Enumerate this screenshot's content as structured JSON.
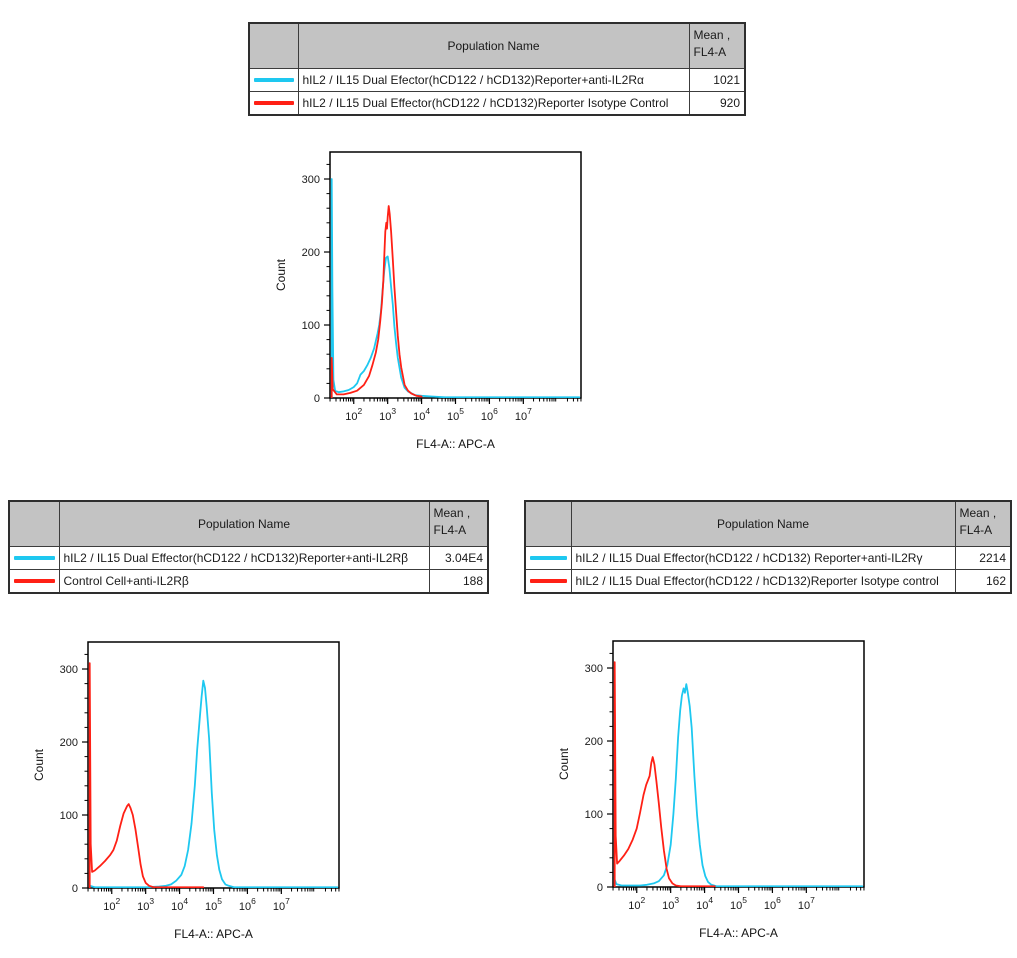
{
  "colors": {
    "cyan": "#1EC8F0",
    "red": "#FF2015",
    "table_header_bg": "#C3C3C3",
    "axis": "#000000"
  },
  "tables": [
    {
      "header": {
        "population": "Population Name",
        "mean_line1": "Mean ,",
        "mean_line2": "FL4-A"
      },
      "rows": [
        {
          "color": "#1EC8F0",
          "name": "hIL2 / IL15 Dual Efector(hCD122 / hCD132)Reporter+anti-IL2Rα",
          "mean": "1021"
        },
        {
          "color": "#FF2015",
          "name": "hIL2 / IL15 Dual Effector(hCD122 / hCD132)Reporter Isotype Control",
          "mean": "920"
        }
      ]
    },
    {
      "header": {
        "population": "Population Name",
        "mean_line1": "Mean ,",
        "mean_line2": "FL4-A"
      },
      "rows": [
        {
          "color": "#1EC8F0",
          "name": "hIL2 / IL15 Dual Effector(hCD122 / hCD132)Reporter+anti-IL2Rβ",
          "mean": "3.04E4"
        },
        {
          "color": "#FF2015",
          "name": "Control Cell+anti-IL2Rβ",
          "mean": "188"
        }
      ]
    },
    {
      "header": {
        "population": "Population Name",
        "mean_line1": "Mean ,",
        "mean_line2": "FL4-A"
      },
      "rows": [
        {
          "color": "#1EC8F0",
          "name": "hIL2 / IL15 Dual Effector(hCD122 / hCD132) Reporter+anti-IL2Rγ",
          "mean": "2214"
        },
        {
          "color": "#FF2015",
          "name": "hIL2 / IL15 Dual Effector(hCD122 / hCD132)Reporter Isotype control",
          "mean": "162"
        }
      ]
    }
  ],
  "chart_data": [
    {
      "type": "line",
      "title": "",
      "xlabel": "FL4-A:: APC-A",
      "ylabel": "Count",
      "x_scale": "log10",
      "x_range": [
        1.3,
        8.7
      ],
      "x_major_ticks": [
        2,
        3,
        4,
        5,
        6,
        7
      ],
      "ylim": [
        0,
        337
      ],
      "y_major_ticks": [
        0,
        100,
        200,
        300
      ],
      "y_minor_step": 20,
      "grid": false,
      "legend_position": "none",
      "series": [
        {
          "name": "hIL2 / IL15 Dual Efector(hCD122 / hCD132)Reporter+anti-IL2Rα",
          "color": "#1EC8F0",
          "peak": {
            "x_log10": 2.97,
            "count": 195
          },
          "points": [
            [
              1.35,
              0
            ],
            [
              1.35,
              300
            ],
            [
              1.37,
              150
            ],
            [
              1.4,
              25
            ],
            [
              1.45,
              10
            ],
            [
              1.55,
              8
            ],
            [
              1.7,
              9
            ],
            [
              1.85,
              11
            ],
            [
              2.0,
              15
            ],
            [
              2.1,
              20
            ],
            [
              2.2,
              32
            ],
            [
              2.3,
              37
            ],
            [
              2.4,
              45
            ],
            [
              2.5,
              55
            ],
            [
              2.6,
              68
            ],
            [
              2.7,
              88
            ],
            [
              2.75,
              100
            ],
            [
              2.8,
              118
            ],
            [
              2.85,
              148
            ],
            [
              2.9,
              175
            ],
            [
              2.95,
              192
            ],
            [
              3.0,
              194
            ],
            [
              3.05,
              178
            ],
            [
              3.1,
              152
            ],
            [
              3.15,
              128
            ],
            [
              3.2,
              98
            ],
            [
              3.25,
              75
            ],
            [
              3.3,
              55
            ],
            [
              3.4,
              28
            ],
            [
              3.5,
              14
            ],
            [
              3.6,
              9
            ],
            [
              3.8,
              4
            ],
            [
              4.0,
              3
            ],
            [
              4.3,
              2
            ],
            [
              4.7,
              1
            ],
            [
              5.5,
              1
            ],
            [
              6.5,
              1
            ],
            [
              7.5,
              1
            ],
            [
              8.65,
              1
            ]
          ]
        },
        {
          "name": "hIL2 / IL15 Dual Effector(hCD122 / hCD132)Reporter Isotype Control",
          "color": "#FF2015",
          "peak": {
            "x_log10": 3.03,
            "count": 263
          },
          "points": [
            [
              1.35,
              0
            ],
            [
              1.35,
              55
            ],
            [
              1.38,
              12
            ],
            [
              1.5,
              5
            ],
            [
              1.7,
              5
            ],
            [
              1.9,
              7
            ],
            [
              2.1,
              10
            ],
            [
              2.3,
              18
            ],
            [
              2.45,
              30
            ],
            [
              2.55,
              45
            ],
            [
              2.65,
              62
            ],
            [
              2.72,
              80
            ],
            [
              2.78,
              105
            ],
            [
              2.83,
              130
            ],
            [
              2.87,
              160
            ],
            [
              2.9,
              195
            ],
            [
              2.93,
              228
            ],
            [
              2.96,
              240
            ],
            [
              2.98,
              232
            ],
            [
              3.0,
              248
            ],
            [
              3.03,
              263
            ],
            [
              3.06,
              252
            ],
            [
              3.1,
              228
            ],
            [
              3.15,
              190
            ],
            [
              3.2,
              152
            ],
            [
              3.25,
              118
            ],
            [
              3.3,
              85
            ],
            [
              3.35,
              60
            ],
            [
              3.4,
              42
            ],
            [
              3.5,
              18
            ],
            [
              3.6,
              10
            ],
            [
              3.7,
              6
            ],
            [
              3.85,
              3
            ],
            [
              4.0,
              2
            ]
          ]
        }
      ]
    },
    {
      "type": "line",
      "title": "",
      "xlabel": "FL4-A:: APC-A",
      "ylabel": "Count",
      "x_scale": "log10",
      "x_range": [
        1.3,
        8.7
      ],
      "x_major_ticks": [
        2,
        3,
        4,
        5,
        6,
        7
      ],
      "ylim": [
        0,
        337
      ],
      "y_major_ticks": [
        0,
        100,
        200,
        300
      ],
      "y_minor_step": 20,
      "grid": false,
      "legend_position": "none",
      "series": [
        {
          "name": "hIL2 / IL15 Dual Effector(hCD122 / hCD132)Reporter+anti-IL2Rβ",
          "color": "#1EC8F0",
          "peak": {
            "x_log10": 4.7,
            "count": 284
          },
          "points": [
            [
              1.35,
              3
            ],
            [
              1.5,
              1
            ],
            [
              2.0,
              1
            ],
            [
              2.5,
              1
            ],
            [
              3.0,
              1
            ],
            [
              3.4,
              2
            ],
            [
              3.6,
              3
            ],
            [
              3.75,
              5
            ],
            [
              3.9,
              10
            ],
            [
              4.05,
              18
            ],
            [
              4.15,
              30
            ],
            [
              4.25,
              52
            ],
            [
              4.35,
              88
            ],
            [
              4.45,
              140
            ],
            [
              4.52,
              190
            ],
            [
              4.6,
              235
            ],
            [
              4.65,
              262
            ],
            [
              4.7,
              284
            ],
            [
              4.75,
              274
            ],
            [
              4.8,
              248
            ],
            [
              4.87,
              205
            ],
            [
              4.95,
              130
            ],
            [
              5.02,
              80
            ],
            [
              5.1,
              45
            ],
            [
              5.17,
              25
            ],
            [
              5.25,
              12
            ],
            [
              5.35,
              5
            ],
            [
              5.45,
              3
            ],
            [
              5.6,
              1
            ],
            [
              6.2,
              1
            ],
            [
              7.2,
              1
            ],
            [
              8.65,
              1
            ]
          ]
        },
        {
          "name": "Control Cell+anti-IL2Rβ",
          "color": "#FF2015",
          "peak": {
            "x_log10": 2.5,
            "count": 115
          },
          "points": [
            [
              1.35,
              0
            ],
            [
              1.35,
              308
            ],
            [
              1.38,
              60
            ],
            [
              1.42,
              22
            ],
            [
              1.5,
              24
            ],
            [
              1.65,
              30
            ],
            [
              1.8,
              37
            ],
            [
              1.95,
              45
            ],
            [
              2.05,
              52
            ],
            [
              2.15,
              65
            ],
            [
              2.25,
              85
            ],
            [
              2.35,
              102
            ],
            [
              2.45,
              112
            ],
            [
              2.5,
              115
            ],
            [
              2.55,
              110
            ],
            [
              2.62,
              100
            ],
            [
              2.7,
              80
            ],
            [
              2.78,
              55
            ],
            [
              2.85,
              32
            ],
            [
              2.92,
              16
            ],
            [
              3.0,
              7
            ],
            [
              3.1,
              3
            ],
            [
              3.25,
              1
            ],
            [
              4.7,
              1
            ]
          ]
        }
      ]
    },
    {
      "type": "line",
      "title": "",
      "xlabel": "FL4-A:: APC-A",
      "ylabel": "Count",
      "x_scale": "log10",
      "x_range": [
        1.3,
        8.7
      ],
      "x_major_ticks": [
        2,
        3,
        4,
        5,
        6,
        7
      ],
      "ylim": [
        0,
        337
      ],
      "y_major_ticks": [
        0,
        100,
        200,
        300
      ],
      "y_minor_step": 20,
      "grid": false,
      "legend_position": "none",
      "series": [
        {
          "name": "hIL2 / IL15 Dual Effector(hCD122 / hCD132) Reporter+anti-IL2Rγ",
          "color": "#1EC8F0",
          "peak": {
            "x_log10": 3.46,
            "count": 278
          },
          "points": [
            [
              1.35,
              10
            ],
            [
              1.4,
              4
            ],
            [
              1.55,
              2
            ],
            [
              1.8,
              2
            ],
            [
              2.1,
              2
            ],
            [
              2.3,
              3
            ],
            [
              2.5,
              5
            ],
            [
              2.65,
              8
            ],
            [
              2.8,
              16
            ],
            [
              2.9,
              30
            ],
            [
              3.0,
              58
            ],
            [
              3.08,
              100
            ],
            [
              3.15,
              148
            ],
            [
              3.22,
              205
            ],
            [
              3.28,
              242
            ],
            [
              3.33,
              262
            ],
            [
              3.38,
              272
            ],
            [
              3.42,
              266
            ],
            [
              3.46,
              278
            ],
            [
              3.5,
              268
            ],
            [
              3.56,
              248
            ],
            [
              3.62,
              218
            ],
            [
              3.7,
              152
            ],
            [
              3.78,
              98
            ],
            [
              3.86,
              58
            ],
            [
              3.94,
              30
            ],
            [
              4.02,
              15
            ],
            [
              4.1,
              7
            ],
            [
              4.2,
              3
            ],
            [
              4.35,
              1
            ],
            [
              5.0,
              1
            ],
            [
              6.0,
              1
            ],
            [
              7.0,
              1
            ],
            [
              8.65,
              1
            ]
          ]
        },
        {
          "name": "hIL2 / IL15 Dual Effector(hCD122 / hCD132)Reporter Isotype control",
          "color": "#FF2015",
          "peak": {
            "x_log10": 2.47,
            "count": 178
          },
          "points": [
            [
              1.35,
              0
            ],
            [
              1.35,
              308
            ],
            [
              1.38,
              70
            ],
            [
              1.42,
              32
            ],
            [
              1.5,
              36
            ],
            [
              1.62,
              43
            ],
            [
              1.75,
              52
            ],
            [
              1.88,
              65
            ],
            [
              2.0,
              80
            ],
            [
              2.1,
              102
            ],
            [
              2.2,
              126
            ],
            [
              2.28,
              140
            ],
            [
              2.33,
              146
            ],
            [
              2.38,
              152
            ],
            [
              2.43,
              170
            ],
            [
              2.47,
              178
            ],
            [
              2.52,
              168
            ],
            [
              2.58,
              145
            ],
            [
              2.65,
              115
            ],
            [
              2.72,
              82
            ],
            [
              2.8,
              50
            ],
            [
              2.88,
              25
            ],
            [
              2.95,
              12
            ],
            [
              3.05,
              5
            ],
            [
              3.15,
              2
            ],
            [
              3.3,
              1
            ],
            [
              4.3,
              1
            ]
          ]
        }
      ]
    }
  ]
}
